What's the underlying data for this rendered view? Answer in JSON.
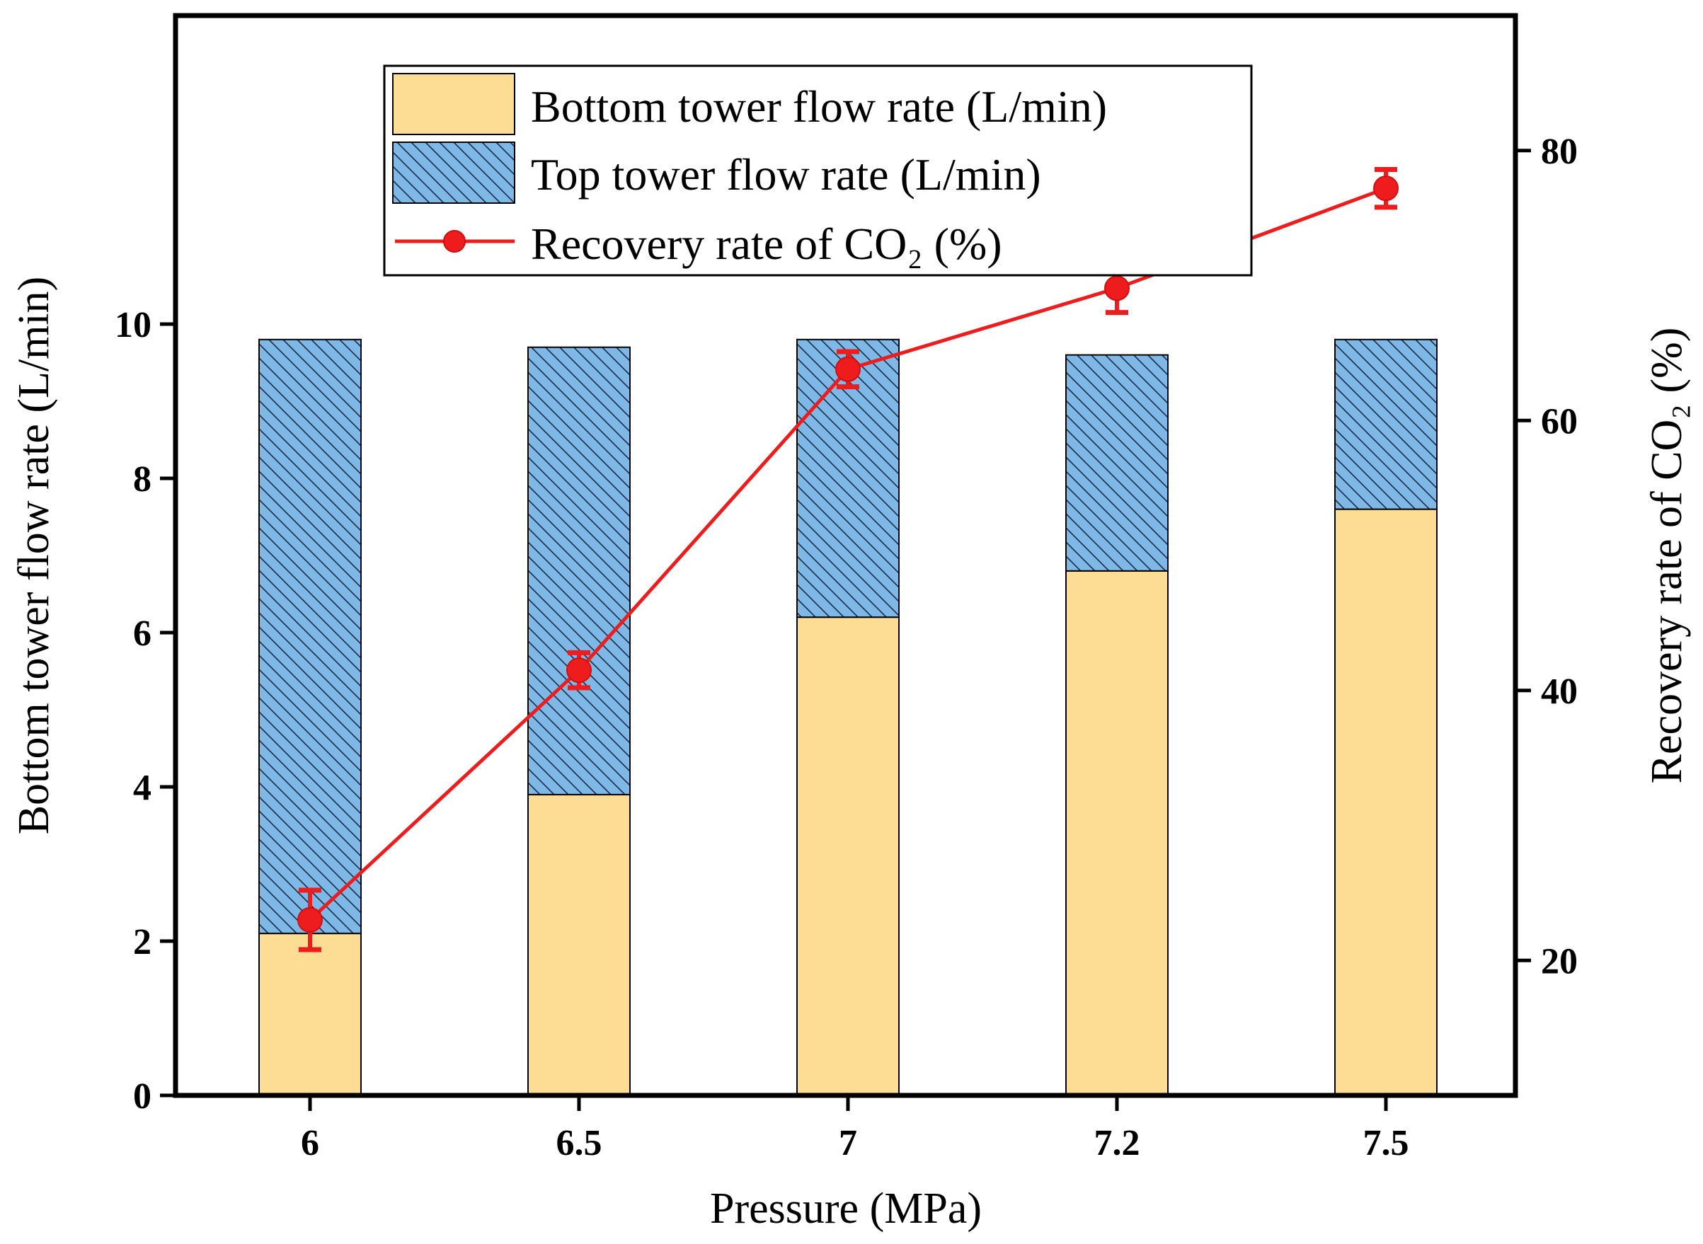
{
  "chart_data": {
    "type": "bar",
    "xlabel": "Pressure (MPa)",
    "ylabel": "Bottom tower flow rate (L/min)",
    "y2label": "Recovery rate of CO₂ (%)",
    "categories": [
      "6",
      "6.5",
      "7",
      "7.2",
      "7.5"
    ],
    "ylim": [
      0,
      14
    ],
    "yticks": [
      "0",
      "2",
      "4",
      "6",
      "8",
      "10"
    ],
    "ylim_right": [
      10,
      90
    ],
    "yticks_right": [
      "20",
      "40",
      "60",
      "80"
    ],
    "series": [
      {
        "name": "Bottom tower flow rate (L/min)",
        "kind": "stacked-bar",
        "values": [
          2.1,
          3.9,
          6.2,
          6.8,
          7.6
        ],
        "color": "#fddd94"
      },
      {
        "name": "Top tower flow rate (L/min)",
        "kind": "stacked-bar",
        "values": [
          7.7,
          5.8,
          3.6,
          2.8,
          2.2
        ],
        "color": "#7eb8e6",
        "pattern": "diagonal-hatch"
      },
      {
        "name": "Recovery rate of CO₂ (%)",
        "kind": "line",
        "axis": "right",
        "values": [
          23.0,
          41.5,
          63.8,
          69.8,
          77.2
        ],
        "errors": [
          2.2,
          1.3,
          1.3,
          1.8,
          1.4
        ],
        "color": "#ee1c1c"
      }
    ],
    "legend_position": "top-center",
    "grid": false
  }
}
